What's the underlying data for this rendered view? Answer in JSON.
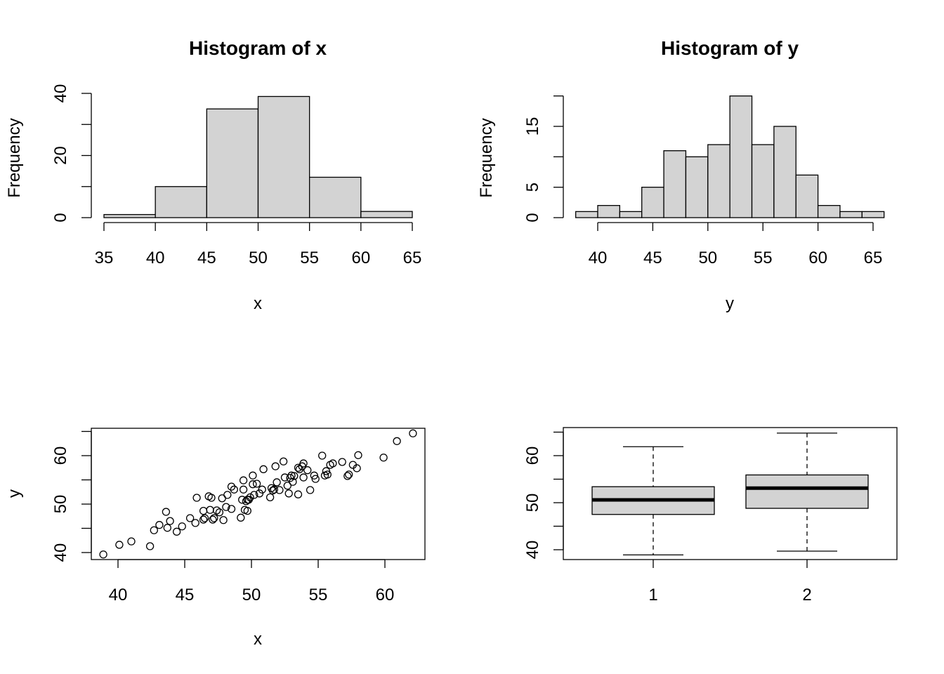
{
  "chart_data": [
    {
      "type": "bar",
      "title": "Histogram of x",
      "xlabel": "x",
      "ylabel": "Frequency",
      "breaks": [
        35,
        40,
        45,
        50,
        55,
        60,
        65
      ],
      "values": [
        1,
        10,
        35,
        39,
        13,
        2
      ],
      "xticks": [
        35,
        40,
        45,
        50,
        55,
        60,
        65
      ],
      "yticks": [
        0,
        10,
        20,
        30,
        40
      ],
      "ytick_labels": [
        "0",
        "",
        "20",
        "",
        "40"
      ],
      "bar_color": "#d3d3d3"
    },
    {
      "type": "bar",
      "title": "Histogram of y",
      "xlabel": "y",
      "ylabel": "Frequency",
      "breaks": [
        38,
        40,
        42,
        44,
        46,
        48,
        50,
        52,
        54,
        56,
        58,
        60,
        62,
        64,
        66
      ],
      "values": [
        1,
        2,
        1,
        5,
        11,
        10,
        12,
        20,
        12,
        15,
        7,
        2,
        1,
        1
      ],
      "xticks": [
        40,
        45,
        50,
        55,
        60,
        65
      ],
      "yticks": [
        0,
        5,
        10,
        15,
        20
      ],
      "ytick_labels": [
        "0",
        "5",
        "",
        "15",
        ""
      ],
      "bar_color": "#d3d3d3"
    },
    {
      "type": "scatter",
      "xlabel": "x",
      "ylabel": "y",
      "xlim": [
        38,
        63
      ],
      "ylim": [
        39,
        65.5
      ],
      "xticks": [
        40,
        45,
        50,
        55,
        60
      ],
      "yticks": [
        40,
        45,
        50,
        55,
        60,
        65
      ],
      "ytick_labels": [
        "40",
        "",
        "50",
        "",
        "60",
        ""
      ],
      "points": [
        [
          38.9,
          39.6
        ],
        [
          40.1,
          41.6
        ],
        [
          41.0,
          42.3
        ],
        [
          42.4,
          41.3
        ],
        [
          42.7,
          44.6
        ],
        [
          43.1,
          45.7
        ],
        [
          43.6,
          48.4
        ],
        [
          43.7,
          45.1
        ],
        [
          43.9,
          46.5
        ],
        [
          44.4,
          44.3
        ],
        [
          44.8,
          45.4
        ],
        [
          45.4,
          47.1
        ],
        [
          45.8,
          46.1
        ],
        [
          45.9,
          51.3
        ],
        [
          46.4,
          46.8
        ],
        [
          46.4,
          48.6
        ],
        [
          46.5,
          47.1
        ],
        [
          46.8,
          51.6
        ],
        [
          47.0,
          51.3
        ],
        [
          46.9,
          48.8
        ],
        [
          47.1,
          46.8
        ],
        [
          47.2,
          47.1
        ],
        [
          47.4,
          48.7
        ],
        [
          47.6,
          48.3
        ],
        [
          47.8,
          51.2
        ],
        [
          47.9,
          46.7
        ],
        [
          48.1,
          49.4
        ],
        [
          48.2,
          51.9
        ],
        [
          48.5,
          53.6
        ],
        [
          48.5,
          49.0
        ],
        [
          48.7,
          53.0
        ],
        [
          49.2,
          47.2
        ],
        [
          49.3,
          50.9
        ],
        [
          49.4,
          53.0
        ],
        [
          49.4,
          54.9
        ],
        [
          49.5,
          48.8
        ],
        [
          49.6,
          50.6
        ],
        [
          49.7,
          48.6
        ],
        [
          49.7,
          50.9
        ],
        [
          49.8,
          50.9
        ],
        [
          49.9,
          51.4
        ],
        [
          50.1,
          55.9
        ],
        [
          50.1,
          54.1
        ],
        [
          50.2,
          51.9
        ],
        [
          50.4,
          54.2
        ],
        [
          50.6,
          52.2
        ],
        [
          50.8,
          53.0
        ],
        [
          50.9,
          57.2
        ],
        [
          51.4,
          51.4
        ],
        [
          51.5,
          53.3
        ],
        [
          51.6,
          52.8
        ],
        [
          51.7,
          53.0
        ],
        [
          51.8,
          57.8
        ],
        [
          51.9,
          54.5
        ],
        [
          52.1,
          52.9
        ],
        [
          52.4,
          58.8
        ],
        [
          52.5,
          55.5
        ],
        [
          52.7,
          53.8
        ],
        [
          52.8,
          52.2
        ],
        [
          52.9,
          55.4
        ],
        [
          53.0,
          55.9
        ],
        [
          53.1,
          54.6
        ],
        [
          53.2,
          55.8
        ],
        [
          53.5,
          52.0
        ],
        [
          53.5,
          57.5
        ],
        [
          53.6,
          57.2
        ],
        [
          53.8,
          57.8
        ],
        [
          53.9,
          55.5
        ],
        [
          53.9,
          58.4
        ],
        [
          54.2,
          57.0
        ],
        [
          54.4,
          52.9
        ],
        [
          54.7,
          55.9
        ],
        [
          54.8,
          55.2
        ],
        [
          55.3,
          60.0
        ],
        [
          55.5,
          55.9
        ],
        [
          55.6,
          56.8
        ],
        [
          55.7,
          56.1
        ],
        [
          55.9,
          58.1
        ],
        [
          56.1,
          58.4
        ],
        [
          56.8,
          58.7
        ],
        [
          57.2,
          55.8
        ],
        [
          57.3,
          56.1
        ],
        [
          57.6,
          58.1
        ],
        [
          57.9,
          57.4
        ],
        [
          58.0,
          60.1
        ],
        [
          59.9,
          59.6
        ],
        [
          60.9,
          63.0
        ],
        [
          62.1,
          64.6
        ]
      ]
    },
    {
      "type": "box",
      "categories": [
        "1",
        "2"
      ],
      "ylim": [
        38,
        65.5
      ],
      "yticks": [
        40,
        45,
        50,
        55,
        60,
        65
      ],
      "ytick_labels": [
        "40",
        "",
        "50",
        "",
        "60",
        ""
      ],
      "boxes": [
        {
          "min": 38.9,
          "q1": 47.5,
          "median": 50.6,
          "q3": 53.4,
          "max": 61.9
        },
        {
          "min": 39.7,
          "q1": 48.8,
          "median": 53.1,
          "q3": 55.9,
          "max": 64.8
        }
      ],
      "box_color": "#d3d3d3"
    }
  ]
}
